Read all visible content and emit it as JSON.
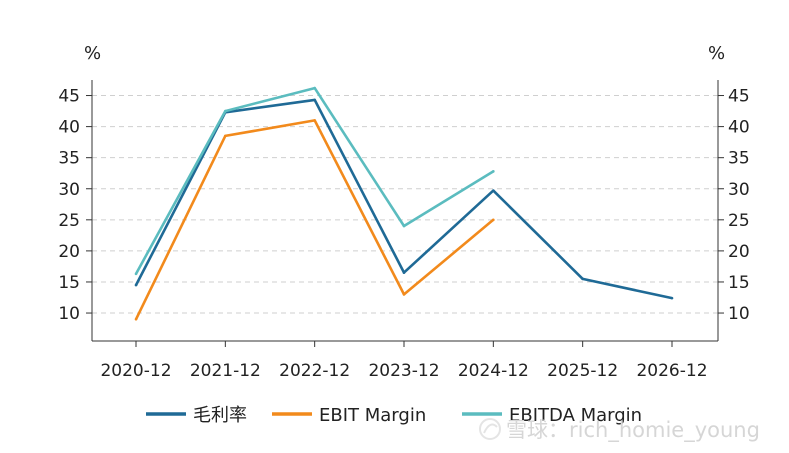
{
  "chart_data": {
    "type": "line",
    "categories": [
      "2020-12",
      "2021-12",
      "2022-12",
      "2023-12",
      "2024-12",
      "2025-12",
      "2026-12"
    ],
    "series": [
      {
        "name": "毛利率",
        "color": "#1f6a96",
        "values": [
          14.5,
          42.3,
          44.3,
          16.5,
          29.7,
          15.5,
          12.4
        ]
      },
      {
        "name": "EBIT Margin",
        "color": "#f28a1c",
        "values": [
          9.0,
          38.5,
          41.0,
          13.0,
          25.0,
          null,
          null
        ]
      },
      {
        "name": "EBITDA Margin",
        "color": "#5bbcbf",
        "values": [
          16.3,
          42.5,
          46.2,
          24.0,
          32.8,
          null,
          null
        ]
      }
    ],
    "y_left_unit": "%",
    "y_right_unit": "%",
    "yticks": [
      10,
      15,
      20,
      25,
      30,
      35,
      40,
      45
    ],
    "ylim": [
      5.5,
      47.5
    ],
    "grid": true,
    "legend_position": "bottom"
  },
  "watermark": "雪球：rich_homie_young"
}
